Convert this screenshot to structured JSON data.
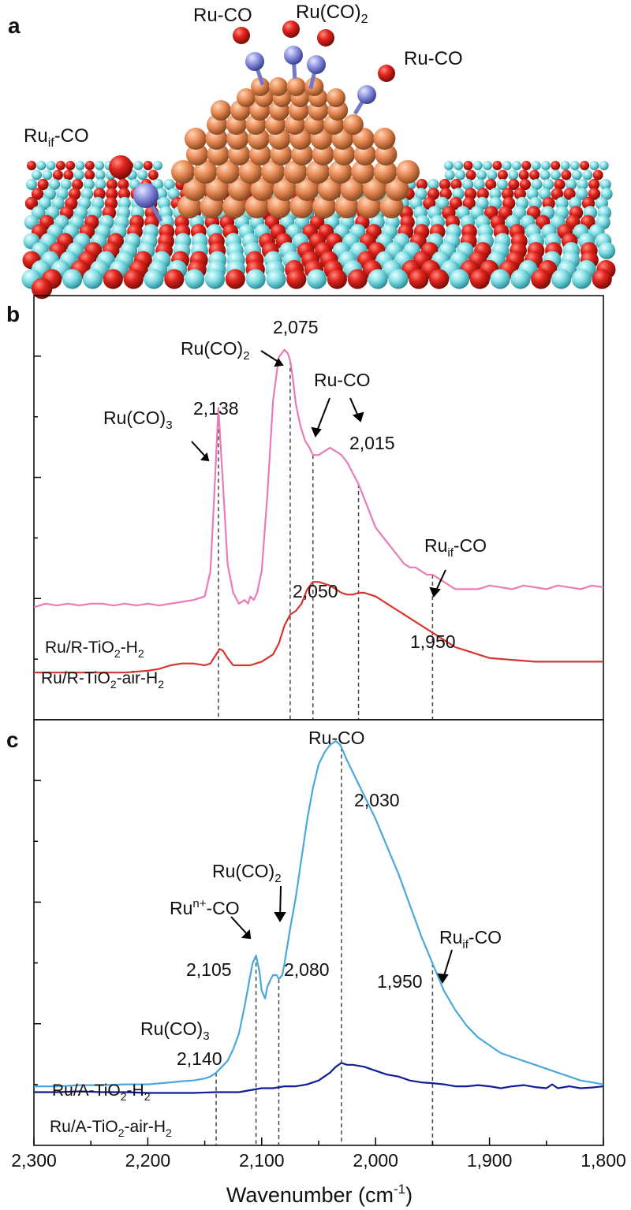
{
  "panel_a": {
    "letter": "a",
    "labels": [
      "Ru-CO",
      "Ru(CO)2",
      "Ru-CO",
      "Ruif-CO"
    ],
    "colors": {
      "oxygen": "#d9221c",
      "titanium": "#7fdde3",
      "ruthenium": "#e88a55",
      "carbon": "#8a90e0"
    }
  },
  "panel_b": {
    "letter": "b",
    "series_labels": [
      "Ru/R-TiO2-H2",
      "Ru/R-TiO2-air-H2"
    ],
    "annotations": [
      {
        "name": "Ru(CO)3",
        "wavenumber": "2,138"
      },
      {
        "name": "Ru(CO)2",
        "wavenumber": "2,075"
      },
      {
        "name": "Ru-CO",
        "wavenumber": "2,015"
      },
      {
        "name": "",
        "wavenumber": "2,050"
      },
      {
        "name": "Ruif-CO",
        "wavenumber": "1,950"
      }
    ]
  },
  "panel_c": {
    "letter": "c",
    "series_labels": [
      "Ru/A-TiO2-H2",
      "Ru/A-TiO2-air-H2"
    ],
    "annotations": [
      {
        "name": "Ru-CO",
        "wavenumber": "2,030"
      },
      {
        "name": "Ru(CO)2",
        "wavenumber": "2,080"
      },
      {
        "name": "Run+-CO",
        "wavenumber": "2,105"
      },
      {
        "name": "Ru(CO)3",
        "wavenumber": "2,140"
      },
      {
        "name": "Ruif-CO",
        "wavenumber": "1,950"
      }
    ]
  },
  "chart_data": [
    {
      "type": "line",
      "panel": "b",
      "xlabel": "Wavenumber (cm-1)",
      "ylabel": "",
      "xlim": [
        2300,
        1800
      ],
      "ylim": [
        0,
        100
      ],
      "x_reversed": true,
      "grid": false,
      "series": [
        {
          "name": "Ru/R-TiO2-H2",
          "color": "#e97bb6",
          "x": [
            2300,
            2290,
            2280,
            2270,
            2260,
            2250,
            2240,
            2230,
            2220,
            2210,
            2200,
            2190,
            2180,
            2170,
            2160,
            2150,
            2145,
            2142,
            2138,
            2134,
            2130,
            2125,
            2120,
            2115,
            2112,
            2110,
            2107,
            2104,
            2100,
            2095,
            2090,
            2085,
            2080,
            2077,
            2075,
            2073,
            2070,
            2066,
            2062,
            2058,
            2055,
            2050,
            2045,
            2040,
            2035,
            2030,
            2025,
            2020,
            2015,
            2010,
            2005,
            2000,
            1995,
            1990,
            1985,
            1980,
            1975,
            1970,
            1965,
            1960,
            1955,
            1950,
            1945,
            1940,
            1935,
            1930,
            1925,
            1920,
            1910,
            1900,
            1890,
            1880,
            1870,
            1860,
            1850,
            1840,
            1830,
            1820,
            1810,
            1800
          ],
          "y": [
            26,
            27,
            26.5,
            27,
            26.5,
            27,
            27,
            26.5,
            27,
            26.5,
            27,
            26.5,
            27,
            27.5,
            28,
            29,
            36,
            55,
            81,
            60,
            38,
            30,
            27,
            28,
            27,
            29,
            28,
            30,
            36,
            57,
            83,
            95,
            97,
            96,
            94,
            90,
            82,
            76,
            72,
            70,
            68,
            68,
            69,
            70,
            69,
            68,
            66,
            63,
            60,
            56,
            52,
            48,
            46,
            44,
            42,
            40,
            38,
            37,
            37,
            36,
            35,
            35,
            34,
            33,
            32,
            31,
            31,
            31,
            31,
            32,
            31.5,
            31,
            32,
            31.5,
            31,
            32,
            31.5,
            31,
            32,
            31.5
          ]
        },
        {
          "name": "Ru/R-TiO2-air-H2",
          "color": "#d7352f",
          "x": [
            2300,
            2280,
            2260,
            2240,
            2220,
            2200,
            2190,
            2180,
            2170,
            2160,
            2150,
            2145,
            2140,
            2137,
            2134,
            2130,
            2125,
            2120,
            2115,
            2110,
            2105,
            2100,
            2095,
            2090,
            2085,
            2080,
            2075,
            2070,
            2065,
            2060,
            2055,
            2050,
            2045,
            2040,
            2035,
            2030,
            2025,
            2020,
            2015,
            2010,
            2005,
            2000,
            1995,
            1990,
            1980,
            1970,
            1960,
            1950,
            1940,
            1930,
            1920,
            1910,
            1900,
            1880,
            1860,
            1840,
            1820,
            1800
          ],
          "y": [
            8,
            8,
            8,
            8,
            8,
            8.5,
            9,
            10,
            10.5,
            10.5,
            10,
            10.5,
            13,
            14.5,
            14,
            12,
            10,
            10,
            10,
            10,
            10.5,
            11,
            12,
            13,
            16,
            21,
            24,
            25,
            27,
            31,
            33,
            33,
            32.5,
            32,
            31,
            30,
            29.5,
            29.5,
            30,
            30,
            29.5,
            29,
            28,
            27,
            25,
            23,
            21,
            19,
            17,
            15,
            14,
            13,
            12,
            11.5,
            11,
            11,
            11,
            11
          ]
        }
      ]
    },
    {
      "type": "line",
      "panel": "c",
      "xlabel": "Wavenumber (cm-1)",
      "ylabel": "",
      "xlim": [
        2300,
        1800
      ],
      "ylim": [
        0,
        100
      ],
      "x_reversed": true,
      "grid": false,
      "series": [
        {
          "name": "Ru/A-TiO2-H2",
          "color": "#4aa8dc",
          "x": [
            2300,
            2280,
            2260,
            2240,
            2220,
            2200,
            2180,
            2170,
            2160,
            2150,
            2145,
            2140,
            2135,
            2130,
            2125,
            2120,
            2115,
            2110,
            2108,
            2105,
            2102,
            2100,
            2097,
            2095,
            2092,
            2090,
            2087,
            2085,
            2082,
            2080,
            2075,
            2070,
            2065,
            2060,
            2055,
            2050,
            2045,
            2040,
            2035,
            2031,
            2028,
            2025,
            2020,
            2015,
            2010,
            2005,
            2000,
            1990,
            1980,
            1970,
            1960,
            1950,
            1940,
            1930,
            1920,
            1910,
            1900,
            1890,
            1880,
            1870,
            1860,
            1850,
            1840,
            1830,
            1820,
            1810,
            1800
          ],
          "y": [
            11.5,
            11.5,
            11.8,
            11.8,
            12,
            12,
            12.5,
            12.8,
            13,
            13.5,
            14,
            15,
            16.5,
            18,
            21,
            25,
            32,
            40,
            43,
            45,
            41,
            36,
            34,
            37,
            39,
            40,
            40,
            39,
            40,
            43,
            52,
            60,
            70,
            80,
            88,
            94,
            97,
            99,
            100,
            99,
            97,
            95,
            92,
            89,
            86,
            83,
            80,
            73,
            66,
            58,
            50,
            43,
            36,
            31,
            27,
            24,
            22,
            20,
            19,
            18,
            17,
            16,
            15,
            14,
            13,
            12.5,
            12
          ]
        },
        {
          "name": "Ru/A-TiO2-air-H2",
          "color": "#0f1e96",
          "x": [
            2300,
            2280,
            2260,
            2240,
            2220,
            2200,
            2180,
            2160,
            2140,
            2120,
            2110,
            2100,
            2090,
            2080,
            2070,
            2060,
            2050,
            2045,
            2040,
            2035,
            2030,
            2025,
            2020,
            2010,
            2000,
            1990,
            1980,
            1970,
            1960,
            1950,
            1940,
            1930,
            1920,
            1910,
            1900,
            1890,
            1880,
            1870,
            1860,
            1850,
            1845,
            1840,
            1830,
            1820,
            1810,
            1800
          ],
          "y": [
            10,
            10,
            10.2,
            10,
            10,
            9.8,
            9.8,
            9.8,
            10,
            10,
            10.5,
            11,
            11,
            11.5,
            11.5,
            12,
            13,
            14,
            15,
            16.5,
            17.5,
            17,
            17,
            16.5,
            15.5,
            14.5,
            14,
            13,
            12.5,
            12.3,
            12,
            11.5,
            11.5,
            11.8,
            11.5,
            11,
            11.5,
            11.8,
            11.3,
            11,
            12,
            11,
            11.5,
            11,
            11.2,
            11.5
          ]
        }
      ]
    }
  ],
  "axis": {
    "xlabel_main": "Wavenumber (cm",
    "xlabel_sup": "-1",
    "xlabel_end": ")",
    "ticks": [
      {
        "value": 2300,
        "label": "2,300"
      },
      {
        "value": 2200,
        "label": "2,200"
      },
      {
        "value": 2100,
        "label": "2,100"
      },
      {
        "value": 2000,
        "label": "2,000"
      },
      {
        "value": 1900,
        "label": "1,900"
      },
      {
        "value": 1800,
        "label": "1,800"
      }
    ]
  }
}
